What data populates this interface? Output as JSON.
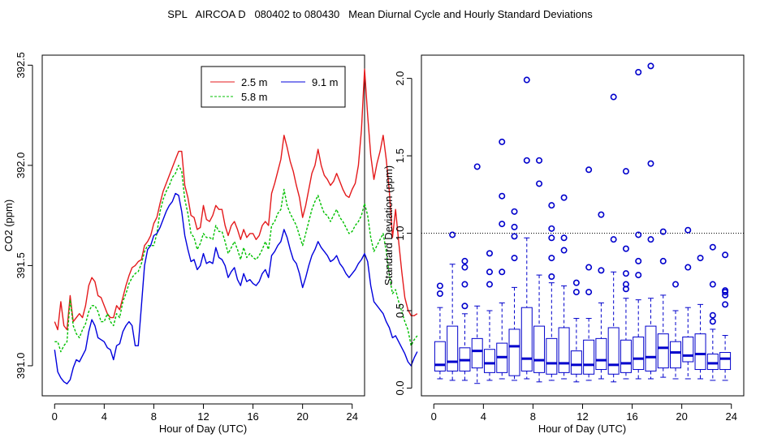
{
  "title": "SPL   AIRCOA D   080402 to 080430   Mean Diurnal Cycle and Hourly Standard Deviations",
  "chart_data": [
    {
      "type": "line",
      "title": "",
      "xlabel": "Hour of Day (UTC)",
      "ylabel": "CO2 (ppm)",
      "xlim": [
        -1,
        25
      ],
      "ylim": [
        390.85,
        392.55
      ],
      "xticks": [
        0,
        4,
        8,
        12,
        16,
        20,
        24
      ],
      "yticks": [
        391.0,
        391.5,
        392.0,
        392.5
      ],
      "ytick_labels": [
        "391.0",
        "391.5",
        "392.0",
        "392.5"
      ],
      "legend_position": "top-right",
      "x_start": 0,
      "x_step": 0.25,
      "series": [
        {
          "name": "2.5 m",
          "color": "#e41a1c",
          "dash": "",
          "values": [
            391.22,
            391.18,
            391.32,
            391.2,
            391.18,
            391.35,
            391.22,
            391.24,
            391.26,
            391.24,
            391.3,
            391.4,
            391.44,
            391.42,
            391.35,
            391.34,
            391.3,
            391.26,
            391.24,
            391.24,
            391.3,
            391.28,
            391.34,
            391.4,
            391.45,
            391.49,
            391.5,
            391.52,
            391.53,
            391.6,
            391.62,
            391.65,
            391.71,
            391.74,
            391.81,
            391.87,
            391.91,
            391.95,
            391.99,
            392.03,
            392.07,
            392.07,
            391.9,
            391.84,
            391.75,
            391.74,
            391.68,
            391.69,
            391.8,
            391.73,
            391.72,
            391.75,
            391.8,
            391.78,
            391.78,
            391.7,
            391.65,
            391.7,
            391.72,
            391.68,
            391.63,
            391.68,
            391.64,
            391.66,
            391.66,
            391.63,
            391.65,
            391.7,
            391.72,
            391.7,
            391.86,
            391.91,
            391.97,
            392.03,
            392.15,
            392.09,
            392.02,
            391.97,
            391.9,
            391.84,
            391.74,
            391.8,
            391.88,
            391.96,
            392.0,
            392.08,
            392.0,
            391.95,
            391.93,
            391.9,
            391.92,
            391.96,
            391.92,
            391.88,
            391.85,
            391.84,
            391.88,
            391.91,
            392.0,
            392.18,
            392.48,
            392.25,
            392.05,
            391.93,
            392.01,
            392.07,
            392.15,
            392.03,
            391.87,
            391.64,
            391.78,
            391.62,
            391.47,
            391.34,
            391.28,
            391.25,
            391.25,
            391.26
          ]
        },
        {
          "name": "5.8 m",
          "color": "#00c000",
          "dash": "3,2",
          "values": [
            391.12,
            391.12,
            391.07,
            391.1,
            391.12,
            391.33,
            391.2,
            391.16,
            391.14,
            391.18,
            391.21,
            391.27,
            391.3,
            391.3,
            391.27,
            391.22,
            391.22,
            391.26,
            391.22,
            391.2,
            391.26,
            391.24,
            391.32,
            391.36,
            391.41,
            391.44,
            391.46,
            391.47,
            391.51,
            391.57,
            391.6,
            391.6,
            391.6,
            391.66,
            391.77,
            391.83,
            391.87,
            391.9,
            391.94,
            391.96,
            392.0,
            391.97,
            391.83,
            391.76,
            391.66,
            391.64,
            391.58,
            391.61,
            391.66,
            391.64,
            391.64,
            391.63,
            391.7,
            391.67,
            391.67,
            391.62,
            391.56,
            391.59,
            391.62,
            391.58,
            391.53,
            391.59,
            391.54,
            391.56,
            391.54,
            391.53,
            391.55,
            391.58,
            391.62,
            391.58,
            391.7,
            391.72,
            391.76,
            391.78,
            391.88,
            391.8,
            391.76,
            391.73,
            391.7,
            391.65,
            391.6,
            391.66,
            391.72,
            391.78,
            391.82,
            391.85,
            391.8,
            391.76,
            391.75,
            391.72,
            391.75,
            391.78,
            391.74,
            391.72,
            391.69,
            391.66,
            391.67,
            391.7,
            391.72,
            391.75,
            391.81,
            391.75,
            391.64,
            391.57,
            391.6,
            391.63,
            391.66,
            391.57,
            391.45,
            391.36,
            391.38,
            391.32,
            391.27,
            391.22,
            391.18,
            391.1,
            391.13,
            391.15
          ]
        },
        {
          "name": "9.1 m",
          "color": "#0000dd",
          "dash": "",
          "values": [
            391.08,
            390.97,
            390.94,
            390.92,
            390.91,
            390.93,
            390.99,
            391.03,
            391.02,
            391.05,
            391.08,
            391.17,
            391.23,
            391.2,
            391.14,
            391.13,
            391.12,
            391.09,
            391.08,
            391.03,
            391.1,
            391.11,
            391.17,
            391.2,
            391.22,
            391.2,
            391.1,
            391.1,
            391.3,
            391.5,
            391.58,
            391.6,
            391.65,
            391.66,
            391.69,
            391.73,
            391.77,
            391.8,
            391.82,
            391.86,
            391.85,
            391.77,
            391.65,
            391.58,
            391.52,
            391.53,
            391.48,
            391.5,
            391.56,
            391.51,
            391.52,
            391.51,
            391.59,
            391.54,
            391.53,
            391.5,
            391.44,
            391.47,
            391.49,
            391.43,
            391.4,
            391.46,
            391.42,
            391.43,
            391.41,
            391.4,
            391.42,
            391.46,
            391.48,
            391.44,
            391.55,
            391.57,
            391.6,
            391.62,
            391.68,
            391.64,
            391.58,
            391.53,
            391.51,
            391.46,
            391.39,
            391.44,
            391.5,
            391.55,
            391.58,
            391.62,
            391.59,
            391.57,
            391.55,
            391.52,
            391.53,
            391.55,
            391.51,
            391.49,
            391.46,
            391.44,
            391.46,
            391.48,
            391.51,
            391.53,
            391.56,
            391.52,
            391.4,
            391.32,
            391.3,
            391.28,
            391.26,
            391.22,
            391.19,
            391.14,
            391.15,
            391.12,
            391.09,
            391.06,
            391.02,
            391.0,
            391.04,
            391.07
          ]
        }
      ]
    },
    {
      "type": "box",
      "title": "",
      "xlabel": "Hour of Day (UTC)",
      "ylabel": "Standard Deviation (ppm)",
      "xlim": [
        -1,
        25
      ],
      "ylim": [
        -0.05,
        2.15
      ],
      "xticks": [
        0,
        4,
        8,
        12,
        16,
        20,
        24
      ],
      "yticks": [
        0.0,
        0.5,
        1.0,
        1.5,
        2.0
      ],
      "ytick_labels": [
        "0.0",
        "0.5",
        "1.0",
        "1.5",
        "2.0"
      ],
      "reference_line": 1.0,
      "color": "#0000cc",
      "boxes": [
        {
          "x": 0.5,
          "whisker_low": 0.06,
          "q1": 0.11,
          "median": 0.15,
          "q3": 0.3,
          "whisker_high": 0.52,
          "outliers": [
            0.61,
            0.66
          ]
        },
        {
          "x": 1.5,
          "whisker_low": 0.05,
          "q1": 0.11,
          "median": 0.17,
          "q3": 0.4,
          "whisker_high": 0.8,
          "outliers": [
            0.99
          ]
        },
        {
          "x": 2.5,
          "whisker_low": 0.05,
          "q1": 0.11,
          "median": 0.18,
          "q3": 0.26,
          "whisker_high": 0.48,
          "outliers": [
            0.53,
            0.67,
            0.78,
            0.82
          ]
        },
        {
          "x": 3.5,
          "whisker_low": 0.03,
          "q1": 0.13,
          "median": 0.24,
          "q3": 0.32,
          "whisker_high": 0.53,
          "outliers": [
            1.43
          ]
        },
        {
          "x": 4.5,
          "whisker_low": 0.05,
          "q1": 0.1,
          "median": 0.16,
          "q3": 0.25,
          "whisker_high": 0.5,
          "outliers": [
            0.67,
            0.75,
            0.87
          ]
        },
        {
          "x": 5.5,
          "whisker_low": 0.06,
          "q1": 0.1,
          "median": 0.2,
          "q3": 0.29,
          "whisker_high": 0.55,
          "outliers": [
            0.75,
            1.06,
            1.24,
            1.59
          ]
        },
        {
          "x": 6.5,
          "whisker_low": 0.05,
          "q1": 0.08,
          "median": 0.27,
          "q3": 0.38,
          "whisker_high": 0.65,
          "outliers": [
            0.84,
            0.98,
            1.04,
            1.14
          ]
        },
        {
          "x": 7.5,
          "whisker_low": 0.06,
          "q1": 0.11,
          "median": 0.19,
          "q3": 0.52,
          "whisker_high": 0.97,
          "outliers": [
            1.47,
            1.99
          ]
        },
        {
          "x": 8.5,
          "whisker_low": 0.04,
          "q1": 0.1,
          "median": 0.18,
          "q3": 0.4,
          "whisker_high": 0.73,
          "outliers": [
            1.32,
            1.47
          ]
        },
        {
          "x": 9.5,
          "whisker_low": 0.05,
          "q1": 0.09,
          "median": 0.16,
          "q3": 0.32,
          "whisker_high": 0.68,
          "outliers": [
            0.72,
            0.84,
            0.97,
            1.03,
            1.18
          ]
        },
        {
          "x": 10.5,
          "whisker_low": 0.06,
          "q1": 0.1,
          "median": 0.16,
          "q3": 0.39,
          "whisker_high": 0.66,
          "outliers": [
            0.89,
            0.97,
            1.23
          ]
        },
        {
          "x": 11.5,
          "whisker_low": 0.04,
          "q1": 0.09,
          "median": 0.15,
          "q3": 0.24,
          "whisker_high": 0.45,
          "outliers": [
            0.62,
            0.68
          ]
        },
        {
          "x": 12.5,
          "whisker_low": 0.05,
          "q1": 0.09,
          "median": 0.15,
          "q3": 0.31,
          "whisker_high": 0.45,
          "outliers": [
            0.62,
            0.78,
            1.41
          ]
        },
        {
          "x": 13.5,
          "whisker_low": 0.06,
          "q1": 0.12,
          "median": 0.18,
          "q3": 0.32,
          "whisker_high": 0.55,
          "outliers": [
            0.76,
            1.12
          ]
        },
        {
          "x": 14.5,
          "whisker_low": 0.04,
          "q1": 0.09,
          "median": 0.15,
          "q3": 0.39,
          "whisker_high": 0.75,
          "outliers": [
            0.96,
            1.88
          ]
        },
        {
          "x": 15.5,
          "whisker_low": 0.06,
          "q1": 0.1,
          "median": 0.16,
          "q3": 0.31,
          "whisker_high": 0.58,
          "outliers": [
            0.64,
            0.67,
            0.74,
            0.9,
            1.4
          ]
        },
        {
          "x": 16.5,
          "whisker_low": 0.06,
          "q1": 0.12,
          "median": 0.19,
          "q3": 0.33,
          "whisker_high": 0.57,
          "outliers": [
            0.73,
            0.82,
            0.99,
            2.04
          ]
        },
        {
          "x": 17.5,
          "whisker_low": 0.06,
          "q1": 0.11,
          "median": 0.2,
          "q3": 0.4,
          "whisker_high": 0.58,
          "outliers": [
            0.96,
            1.45,
            2.08
          ]
        },
        {
          "x": 18.5,
          "whisker_low": 0.07,
          "q1": 0.13,
          "median": 0.26,
          "q3": 0.35,
          "whisker_high": 0.6,
          "outliers": [
            0.82,
            1.01
          ]
        },
        {
          "x": 19.5,
          "whisker_low": 0.06,
          "q1": 0.13,
          "median": 0.23,
          "q3": 0.3,
          "whisker_high": 0.5,
          "outliers": [
            0.67
          ]
        },
        {
          "x": 20.5,
          "whisker_low": 0.06,
          "q1": 0.17,
          "median": 0.21,
          "q3": 0.33,
          "whisker_high": 0.52,
          "outliers": [
            0.78,
            1.02
          ]
        },
        {
          "x": 21.5,
          "whisker_low": 0.06,
          "q1": 0.12,
          "median": 0.22,
          "q3": 0.35,
          "whisker_high": 0.54,
          "outliers": [
            0.84
          ]
        },
        {
          "x": 22.5,
          "whisker_low": 0.05,
          "q1": 0.12,
          "median": 0.16,
          "q3": 0.22,
          "whisker_high": 0.38,
          "outliers": [
            0.43,
            0.47,
            0.67,
            0.91
          ]
        },
        {
          "x": 23.5,
          "whisker_low": 0.05,
          "q1": 0.12,
          "median": 0.19,
          "q3": 0.23,
          "whisker_high": 0.34,
          "outliers": [
            0.54,
            0.6,
            0.62,
            0.63,
            0.86
          ]
        }
      ]
    }
  ]
}
